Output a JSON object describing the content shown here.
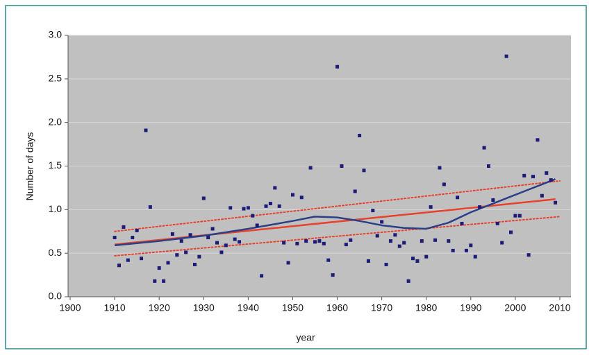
{
  "chart_data": {
    "type": "scatter",
    "xlabel": "year",
    "ylabel": "Number of days",
    "xlim": [
      1900,
      2010
    ],
    "xticks": [
      1900,
      1910,
      1920,
      1930,
      1940,
      1950,
      1960,
      1970,
      1980,
      1990,
      2000,
      2010
    ],
    "ylim": [
      0,
      3
    ],
    "yticks": [
      {
        "value": 0,
        "label": "0.0"
      },
      {
        "value": 0.5,
        "label": "0.5"
      },
      {
        "value": 1,
        "label": "1.0"
      },
      {
        "value": 1.5,
        "label": "1.5"
      },
      {
        "value": 2,
        "label": "2.0"
      },
      {
        "value": 2.5,
        "label": "2.5"
      },
      {
        "value": 3,
        "label": "3.0"
      }
    ],
    "grid": true,
    "color": "#1c1c78",
    "x": [
      1910,
      1911,
      1912,
      1913,
      1914,
      1915,
      1916,
      1917,
      1918,
      1919,
      1920,
      1921,
      1922,
      1923,
      1924,
      1925,
      1926,
      1927,
      1928,
      1929,
      1930,
      1931,
      1932,
      1933,
      1934,
      1935,
      1936,
      1937,
      1938,
      1939,
      1940,
      1941,
      1942,
      1943,
      1944,
      1945,
      1946,
      1947,
      1948,
      1949,
      1950,
      1951,
      1952,
      1953,
      1954,
      1955,
      1956,
      1957,
      1958,
      1959,
      1960,
      1961,
      1962,
      1963,
      1964,
      1965,
      1966,
      1967,
      1968,
      1969,
      1970,
      1971,
      1972,
      1973,
      1974,
      1975,
      1976,
      1977,
      1978,
      1979,
      1980,
      1981,
      1982,
      1983,
      1984,
      1985,
      1986,
      1987,
      1988,
      1989,
      1990,
      1991,
      1992,
      1993,
      1994,
      1995,
      1996,
      1997,
      1998,
      1999,
      2000,
      2001,
      2002,
      2003,
      2004,
      2005,
      2006,
      2007,
      2008,
      2009
    ],
    "values": [
      0.68,
      0.36,
      0.8,
      0.42,
      0.68,
      0.76,
      0.44,
      1.91,
      1.03,
      0.18,
      0.33,
      0.18,
      0.39,
      0.72,
      0.48,
      0.64,
      0.51,
      0.71,
      0.37,
      0.46,
      1.13,
      0.68,
      0.78,
      0.62,
      0.51,
      0.59,
      1.02,
      0.66,
      0.63,
      1.01,
      1.02,
      0.93,
      0.82,
      0.24,
      1.04,
      1.07,
      1.25,
      1.04,
      0.62,
      0.39,
      1.17,
      0.61,
      1.14,
      0.64,
      1.48,
      0.63,
      0.64,
      0.61,
      0.42,
      0.25,
      2.64,
      1.5,
      0.6,
      0.65,
      1.21,
      1.85,
      1.45,
      0.41,
      0.99,
      0.7,
      0.86,
      0.37,
      0.64,
      0.71,
      0.58,
      0.62,
      0.18,
      0.44,
      0.41,
      0.64,
      0.46,
      1.03,
      0.65,
      1.48,
      1.29,
      0.64,
      0.53,
      1.14,
      0.84,
      0.53,
      0.59,
      0.46,
      1.03,
      1.71,
      1.5,
      1.11,
      0.84,
      0.62,
      2.76,
      0.74,
      0.93,
      0.93,
      1.39,
      0.48,
      1.38,
      1.8,
      1.16,
      1.42,
      1.34,
      1.08
    ],
    "lines": [
      {
        "color": "#e8412c",
        "dash": "dotted",
        "x": [
          1910,
          2010
        ],
        "values": [
          0.75,
          1.33
        ]
      },
      {
        "color": "#e8412c",
        "dash": "dotted",
        "x": [
          1910,
          2010
        ],
        "values": [
          0.47,
          0.92
        ]
      },
      {
        "color": "#e8412c",
        "dash": "solid",
        "x": [
          1910,
          2009
        ],
        "values": [
          0.6,
          1.12
        ]
      },
      {
        "color": "#2b3f86",
        "dash": "solid",
        "x": [
          1910,
          1920,
          1930,
          1940,
          1950,
          1955,
          1960,
          1965,
          1970,
          1975,
          1980,
          1985,
          1990,
          1995,
          2000,
          2005,
          2009
        ],
        "values": [
          0.59,
          0.64,
          0.7,
          0.78,
          0.87,
          0.92,
          0.91,
          0.87,
          0.82,
          0.79,
          0.78,
          0.85,
          0.97,
          1.07,
          1.17,
          1.27,
          1.35
        ]
      }
    ]
  }
}
